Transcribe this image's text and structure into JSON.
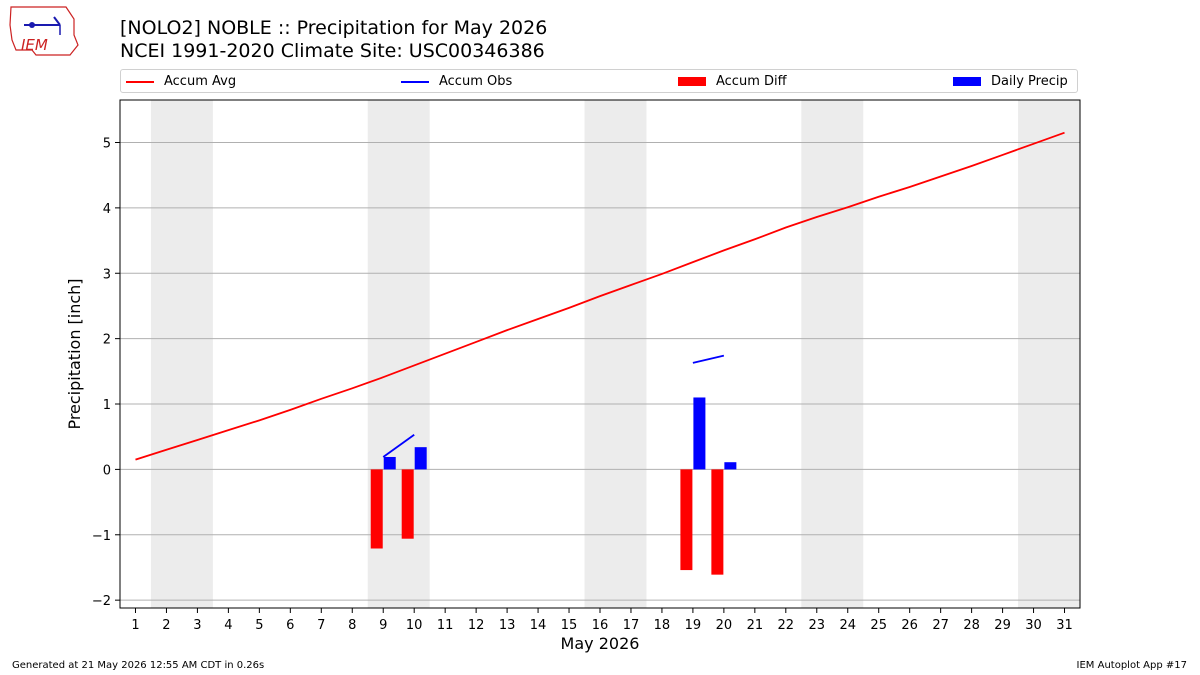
{
  "header": {
    "title_line1": "[NOLO2] NOBLE :: Precipitation for May 2026",
    "title_line2": "NCEI 1991-2020 Climate Site: USC00346386",
    "logo_text": "IEM"
  },
  "footer": {
    "left": "Generated at 21 May 2026 12:55 AM CDT in 0.26s",
    "right": "IEM Autoplot App #17"
  },
  "legend": [
    {
      "label": "Accum Avg",
      "kind": "line",
      "color": "#ff0000"
    },
    {
      "label": "Accum Obs",
      "kind": "line",
      "color": "#0000ff"
    },
    {
      "label": "Accum Diff",
      "kind": "bar",
      "color": "#ff0000"
    },
    {
      "label": "Daily Precip",
      "kind": "bar",
      "color": "#0000ff"
    }
  ],
  "chart_data": {
    "type": "bar",
    "title": "[NOLO2] NOBLE :: Precipitation for May 2026",
    "subtitle": "NCEI 1991-2020 Climate Site: USC00346386",
    "xlabel": "May 2026",
    "ylabel": "Precipitation [inch]",
    "x": [
      1,
      2,
      3,
      4,
      5,
      6,
      7,
      8,
      9,
      10,
      11,
      12,
      13,
      14,
      15,
      16,
      17,
      18,
      19,
      20,
      21,
      22,
      23,
      24,
      25,
      26,
      27,
      28,
      29,
      30,
      31
    ],
    "xlim": [
      0.5,
      31.5
    ],
    "ylim": [
      -2.12,
      5.65
    ],
    "yticks": [
      -2,
      -1,
      0,
      1,
      2,
      3,
      4,
      5
    ],
    "grid": "horizontal",
    "legend_position": "top",
    "weekend_shading": [
      [
        1.5,
        3.5
      ],
      [
        8.5,
        10.5
      ],
      [
        15.5,
        17.5
      ],
      [
        22.5,
        24.5
      ],
      [
        29.5,
        31.5
      ]
    ],
    "series": [
      {
        "name": "Accum Avg",
        "kind": "line",
        "color": "#ff0000",
        "x": [
          1,
          2,
          3,
          4,
          5,
          6,
          7,
          8,
          9,
          10,
          11,
          12,
          13,
          14,
          15,
          16,
          17,
          18,
          19,
          20,
          21,
          22,
          23,
          24,
          25,
          26,
          27,
          28,
          29,
          30,
          31
        ],
        "values": [
          0.15,
          0.3,
          0.45,
          0.6,
          0.75,
          0.91,
          1.08,
          1.24,
          1.41,
          1.59,
          1.77,
          1.95,
          2.13,
          2.3,
          2.47,
          2.65,
          2.82,
          2.99,
          3.17,
          3.35,
          3.52,
          3.7,
          3.86,
          4.01,
          4.17,
          4.32,
          4.48,
          4.64,
          4.81,
          4.98,
          5.15
        ]
      },
      {
        "name": "Accum Obs",
        "kind": "line",
        "color": "#0000ff",
        "x": [
          9,
          10,
          19,
          20
        ],
        "values": [
          0.19,
          0.53,
          1.63,
          1.74
        ],
        "segments": [
          [
            9,
            10
          ],
          [
            19,
            20
          ]
        ]
      },
      {
        "name": "Accum Diff",
        "kind": "bar",
        "color": "#ff0000",
        "x": [
          9,
          10,
          19,
          20
        ],
        "values": [
          -1.21,
          -1.06,
          -1.54,
          -1.61
        ]
      },
      {
        "name": "Daily Precip",
        "kind": "bar",
        "color": "#0000ff",
        "x": [
          9,
          10,
          19,
          20
        ],
        "values": [
          0.19,
          0.34,
          1.1,
          0.11
        ]
      }
    ]
  }
}
